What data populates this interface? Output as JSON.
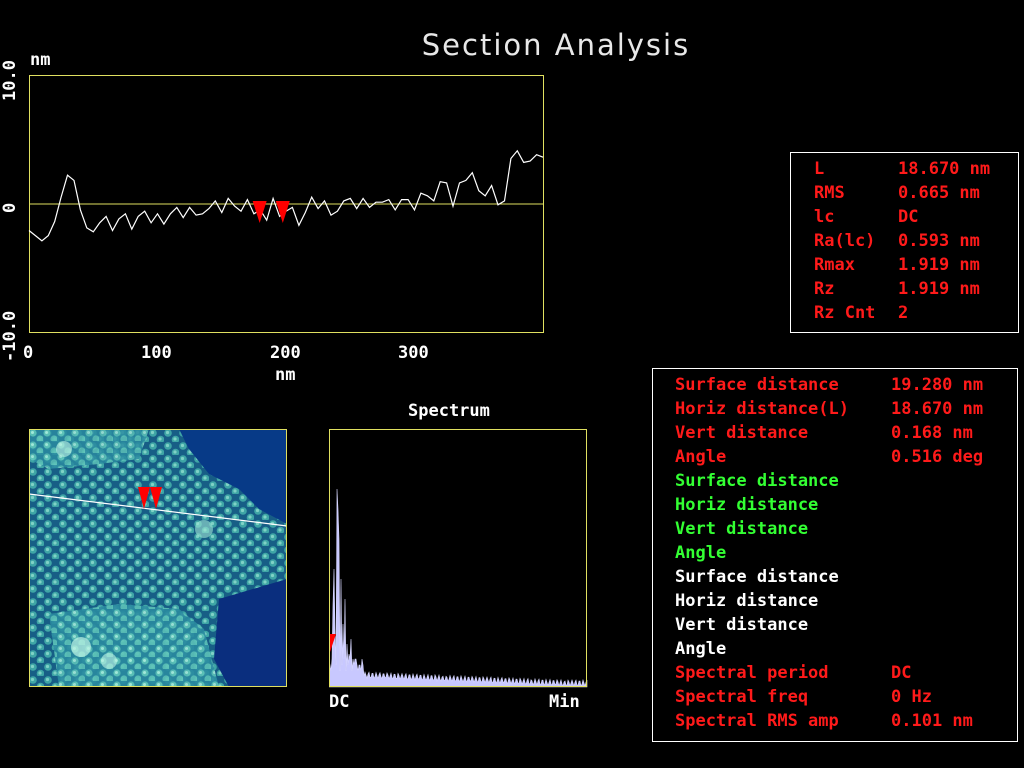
{
  "window_title": "Section Analysis",
  "colors": {
    "frame": "#e0e060",
    "marker": "#ff0000",
    "red_text": "#ff1a1a",
    "green_text": "#33ff33",
    "spectrum_fill": "#c8c8ff"
  },
  "profile": {
    "y_unit": "nm",
    "x_unit": "nm",
    "y_ticks": [
      "10.0",
      "0",
      "-10.0"
    ],
    "x_ticks": [
      "0",
      "100",
      "200",
      "300"
    ]
  },
  "chart_data": [
    {
      "type": "line",
      "xlim": [
        0,
        400
      ],
      "ylim": [
        -10,
        10
      ],
      "x": [
        0,
        5,
        10,
        15,
        20,
        25,
        30,
        35,
        40,
        45,
        50,
        55,
        60,
        65,
        70,
        75,
        80,
        85,
        90,
        95,
        100,
        105,
        110,
        115,
        120,
        125,
        130,
        135,
        140,
        145,
        150,
        155,
        160,
        165,
        170,
        175,
        180,
        185,
        190,
        195,
        200,
        205,
        210,
        215,
        220,
        225,
        230,
        235,
        240,
        245,
        250,
        255,
        260,
        265,
        270,
        275,
        280,
        285,
        290,
        295,
        300,
        305,
        310,
        315,
        320,
        325,
        330,
        335,
        340,
        345,
        350,
        355,
        360,
        365,
        370,
        375,
        380,
        385,
        390,
        395,
        400
      ],
      "y": [
        -2.1,
        -2.5,
        -2.9,
        -2.5,
        -1.4,
        0.5,
        2.2,
        1.8,
        -0.5,
        -1.9,
        -2.2,
        -1.5,
        -1.0,
        -2.1,
        -1.2,
        -0.8,
        -2.0,
        -1.0,
        -0.6,
        -1.5,
        -0.8,
        -1.6,
        -0.8,
        -0.3,
        -1.1,
        -0.3,
        -0.9,
        -0.8,
        -0.4,
        0.2,
        -0.7,
        0.4,
        -0.2,
        -0.6,
        0.3,
        -0.8,
        -0.5,
        -1.3,
        0.4,
        -1.0,
        -0.6,
        -0.3,
        -1.7,
        -0.7,
        0.5,
        -0.4,
        0.2,
        -0.9,
        -0.6,
        0.2,
        0.4,
        -0.4,
        0.4,
        -0.3,
        0.1,
        0.1,
        0.3,
        -0.5,
        0.3,
        0.3,
        -0.5,
        0.8,
        0.6,
        0.2,
        1.7,
        1.6,
        -0.2,
        1.6,
        1.8,
        2.4,
        1.0,
        0.6,
        1.4,
        -0.1,
        0.2,
        3.5,
        4.1,
        3.2,
        3.3,
        3.8,
        3.6
      ],
      "markers_x": [
        179.5,
        197.5
      ]
    },
    {
      "type": "area",
      "title": "Spectrum",
      "x_labels": [
        "DC",
        "Min"
      ]
    }
  ],
  "stats": {
    "rows": [
      {
        "label": "L",
        "value": "18.670 nm"
      },
      {
        "label": "RMS",
        "value": "0.665 nm"
      },
      {
        "label": "lc",
        "value": "DC"
      },
      {
        "label": "Ra(lc)",
        "value": "0.593 nm"
      },
      {
        "label": "Rmax",
        "value": "1.919 nm"
      },
      {
        "label": "Rz",
        "value": "1.919 nm"
      },
      {
        "label": "Rz Cnt",
        "value": "2"
      }
    ]
  },
  "measurements": {
    "rows": [
      {
        "label": "Surface distance",
        "value": "19.280 nm",
        "color": "red"
      },
      {
        "label": "Horiz distance(L)",
        "value": "18.670 nm",
        "color": "red"
      },
      {
        "label": "Vert distance",
        "value": "0.168 nm",
        "color": "red"
      },
      {
        "label": "Angle",
        "value": "0.516 deg",
        "color": "red"
      },
      {
        "label": "Surface distance",
        "value": "",
        "color": "green"
      },
      {
        "label": "Horiz distance",
        "value": "",
        "color": "green"
      },
      {
        "label": "Vert distance",
        "value": "",
        "color": "green"
      },
      {
        "label": "Angle",
        "value": "",
        "color": "green"
      },
      {
        "label": "Surface distance",
        "value": "",
        "color": "white"
      },
      {
        "label": "Horiz distance",
        "value": "",
        "color": "white"
      },
      {
        "label": "Vert distance",
        "value": "",
        "color": "white"
      },
      {
        "label": "Angle",
        "value": "",
        "color": "white"
      },
      {
        "label": "Spectral period",
        "value": "DC",
        "color": "red"
      },
      {
        "label": "Spectral freq",
        "value": "0 Hz",
        "color": "red"
      },
      {
        "label": "Spectral RMS amp",
        "value": "0.101 nm",
        "color": "red"
      }
    ]
  }
}
